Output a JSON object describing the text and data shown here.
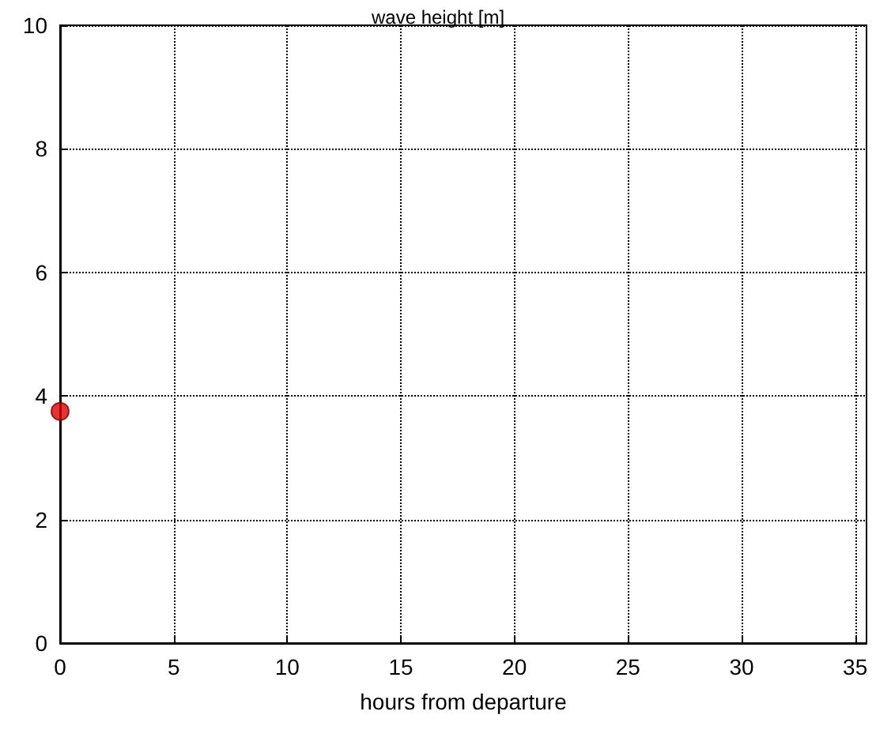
{
  "chart_data": {
    "type": "scatter",
    "title": "wave height [m]",
    "xlabel": "hours from departure",
    "x": [
      0
    ],
    "values": [
      3.75
    ],
    "color": "#e00000",
    "marker": "circle",
    "xlim": [
      0,
      35.5
    ],
    "xticks": [
      0,
      5,
      10,
      15,
      20,
      25,
      30,
      35
    ],
    "ylim": [
      0,
      10
    ],
    "yticks": [
      0,
      2,
      4,
      6,
      8,
      10
    ],
    "grid": true
  }
}
